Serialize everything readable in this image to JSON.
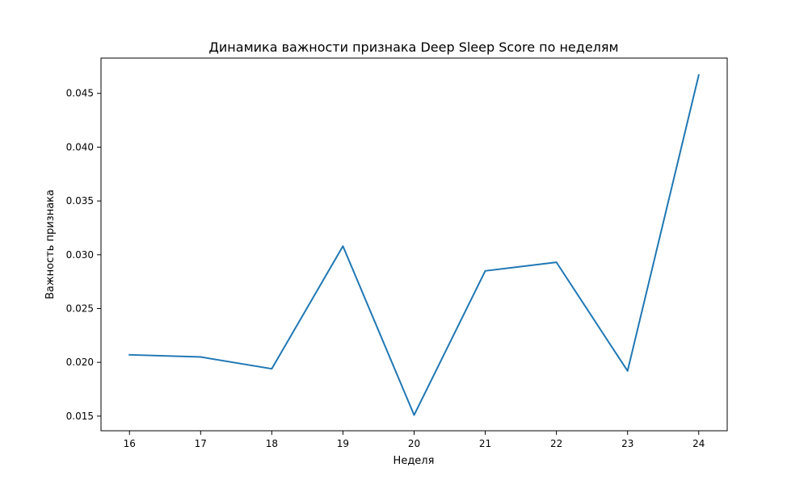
{
  "chart_data": {
    "type": "line",
    "title": "Динамика важности признака Deep Sleep Score по неделям",
    "xlabel": "Неделя",
    "ylabel": "Важность признака",
    "x": [
      16,
      17,
      18,
      19,
      20,
      21,
      22,
      23,
      24
    ],
    "series": [
      {
        "values": [
          0.0207,
          0.0205,
          0.0194,
          0.0308,
          0.0151,
          0.0285,
          0.0293,
          0.0192,
          0.0467
        ],
        "color": "#1f77b4"
      }
    ],
    "xlim": [
      15.6,
      24.4
    ],
    "ylim": [
      0.01364,
      0.04828
    ],
    "xticks": [
      16,
      17,
      18,
      19,
      20,
      21,
      22,
      23,
      24
    ],
    "yticks": [
      0.015,
      0.02,
      0.025,
      0.03,
      0.035,
      0.04,
      0.045
    ],
    "ytick_labels": [
      "0.015",
      "0.020",
      "0.025",
      "0.030",
      "0.035",
      "0.040",
      "0.045"
    ],
    "grid": false,
    "legend": "none"
  }
}
